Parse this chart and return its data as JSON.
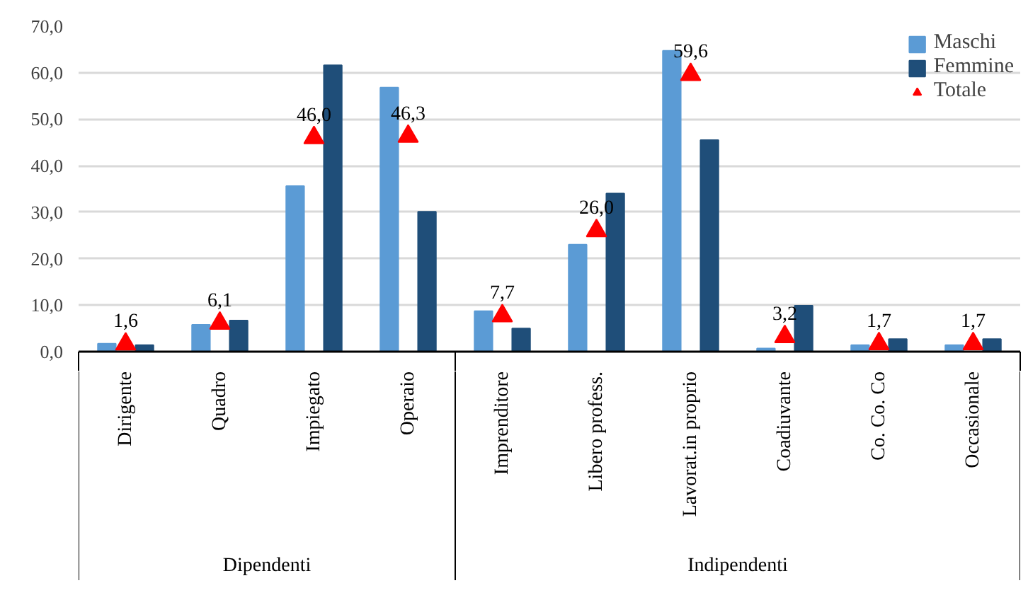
{
  "chart_data": {
    "type": "bar",
    "categories": [
      "Dirigente",
      "Quadro",
      "Impiegato",
      "Operaio",
      "Imprenditore",
      "Libero profess.",
      "Lavorat.in proprio",
      "Coadiuvante",
      "Co. Co. Co",
      "Occasionale"
    ],
    "annotations": [
      "Dipendenti",
      "Indipendenti"
    ],
    "series": [
      {
        "name": "Maschi",
        "color": "#5b9bd5",
        "values": [
          1.7,
          5.8,
          35.6,
          56.8,
          8.7,
          23.0,
          64.7,
          0.7,
          1.4,
          1.4
        ]
      },
      {
        "name": "Femmine",
        "color": "#1f4e79",
        "values": [
          1.4,
          6.7,
          61.6,
          30.1,
          5.0,
          34.0,
          45.5,
          9.9,
          2.7,
          2.7
        ]
      },
      {
        "name": "Totale",
        "type": "scatter",
        "marker": "triangle",
        "color": "#ff0000",
        "values": [
          1.6,
          6.1,
          46.0,
          46.3,
          7.7,
          26.0,
          59.6,
          3.2,
          1.7,
          1.7
        ],
        "value_labels": [
          "1,6",
          "6,1",
          "46,0",
          "46,3",
          "7,7",
          "26,0",
          "59,6",
          "3,2",
          "1,7",
          "1,7"
        ]
      }
    ],
    "ylim": [
      0,
      70
    ],
    "yticks": [
      {
        "value": 0,
        "label": "0,0"
      },
      {
        "value": 10,
        "label": "10,0"
      },
      {
        "value": 20,
        "label": "20,0"
      },
      {
        "value": 30,
        "label": "30,0"
      },
      {
        "value": 40,
        "label": "40,0"
      },
      {
        "value": 50,
        "label": "50,0"
      },
      {
        "value": 60,
        "label": "60,0"
      },
      {
        "value": 70,
        "label": "70,0"
      }
    ],
    "grid": "y",
    "legend": "top right"
  }
}
